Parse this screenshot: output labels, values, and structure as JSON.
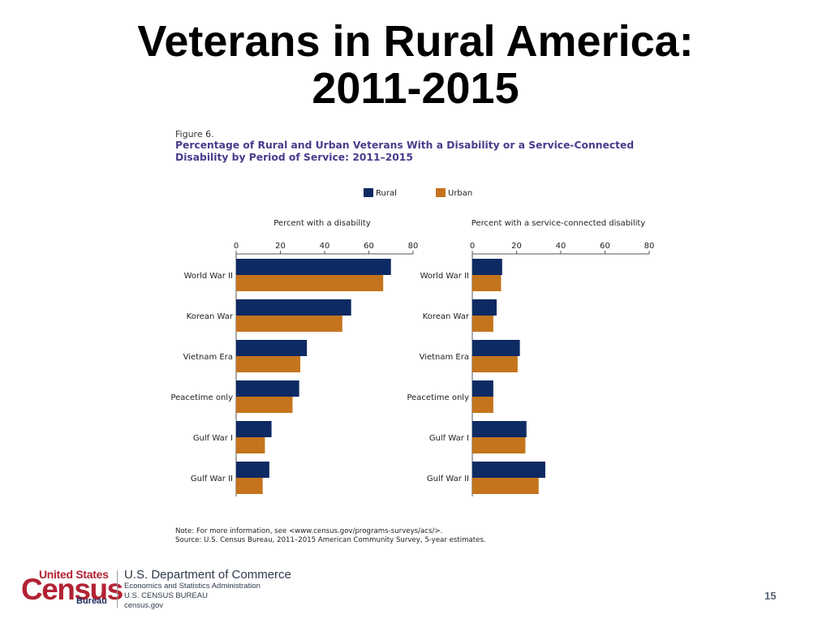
{
  "slide": {
    "title_line1": "Veterans in Rural America:",
    "title_line2": "2011-2015",
    "page_number": "15"
  },
  "figure": {
    "label": "Figure 6.",
    "title_line1": "Percentage of Rural and Urban Veterans With a Disability or a Service-Connected",
    "title_line2": "Disability by Period of Service: 2011–2015",
    "note_line1": "Note: For more information, see <www.census.gov/programs-surveys/acs/>.",
    "note_line2": "Source: U.S. Census Bureau, 2011–2015 American Community Survey, 5-year estimates."
  },
  "legend": {
    "rural": "Rural",
    "urban": "Urban"
  },
  "colors": {
    "rural": "#0e2a63",
    "urban": "#c4741d",
    "title_purple": "#4b3a8c",
    "census_red": "#b22234"
  },
  "footer": {
    "logo_united_states": "United States",
    "logo_census": "Census",
    "logo_bureau": "Bureau",
    "dept_name": "U.S. Department of Commerce",
    "line1": "Economics and Statistics Administration",
    "line2": "U.S. CENSUS BUREAU",
    "line3": "census.gov"
  },
  "chart_data": [
    {
      "type": "bar",
      "orientation": "horizontal",
      "title": "Percent with a disability",
      "categories": [
        "World War II",
        "Korean War",
        "Vietnam Era",
        "Peacetime only",
        "Gulf War I",
        "Gulf War II"
      ],
      "series": [
        {
          "name": "Rural",
          "values": [
            70,
            52,
            32,
            28.5,
            16,
            15
          ]
        },
        {
          "name": "Urban",
          "values": [
            66.5,
            48,
            29,
            25.5,
            13,
            12
          ]
        }
      ],
      "xlim": [
        0,
        80
      ],
      "ticks": [
        0,
        20,
        40,
        60,
        80
      ]
    },
    {
      "type": "bar",
      "orientation": "horizontal",
      "title": "Percent with a service-connected disability",
      "categories": [
        "World War II",
        "Korean War",
        "Vietnam Era",
        "Peacetime only",
        "Gulf War I",
        "Gulf War II"
      ],
      "series": [
        {
          "name": "Rural",
          "values": [
            13.5,
            11,
            21.5,
            9.5,
            24.5,
            33
          ]
        },
        {
          "name": "Urban",
          "values": [
            13,
            9.5,
            20.5,
            9.5,
            24,
            30
          ]
        }
      ],
      "xlim": [
        0,
        80
      ],
      "ticks": [
        0,
        20,
        40,
        60,
        80
      ]
    }
  ]
}
